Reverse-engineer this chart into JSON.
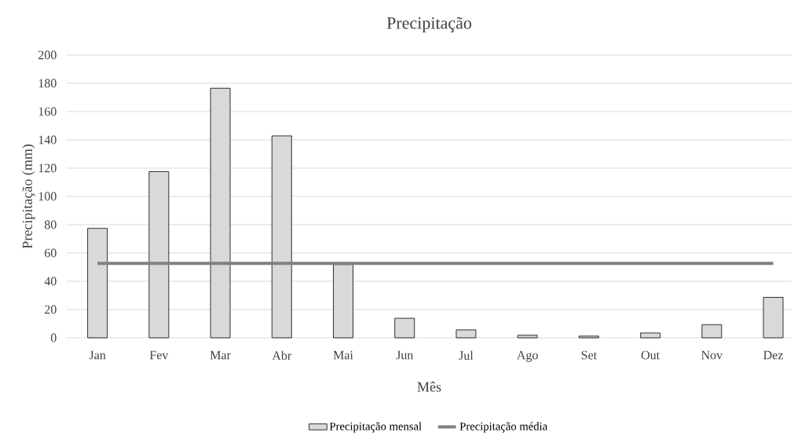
{
  "chart_data": {
    "type": "bar",
    "title": "Precipitação",
    "xlabel": "Mês",
    "ylabel": "Precipitação (mm)",
    "categories": [
      "Jan",
      "Fev",
      "Mar",
      "Abr",
      "Mai",
      "Jun",
      "Jul",
      "Ago",
      "Set",
      "Out",
      "Nov",
      "Dez"
    ],
    "series": [
      {
        "name": "Precipitação mensal",
        "color": "#d9d9d9",
        "values": [
          77.4,
          117.5,
          176.5,
          142.8,
          51.8,
          13.8,
          5.6,
          1.8,
          1.2,
          3.4,
          9.3,
          28.6
        ]
      },
      {
        "name": "Precipitação média",
        "type": "line",
        "color": "#808080",
        "values": [
          52.6,
          52.6,
          52.6,
          52.6,
          52.6,
          52.6,
          52.6,
          52.6,
          52.6,
          52.6,
          52.6,
          52.6
        ]
      }
    ],
    "ylim": [
      0,
      200
    ],
    "yticks": [
      0,
      20,
      40,
      60,
      80,
      100,
      120,
      140,
      160,
      180,
      200
    ],
    "grid": "y",
    "legend": "bottom"
  }
}
